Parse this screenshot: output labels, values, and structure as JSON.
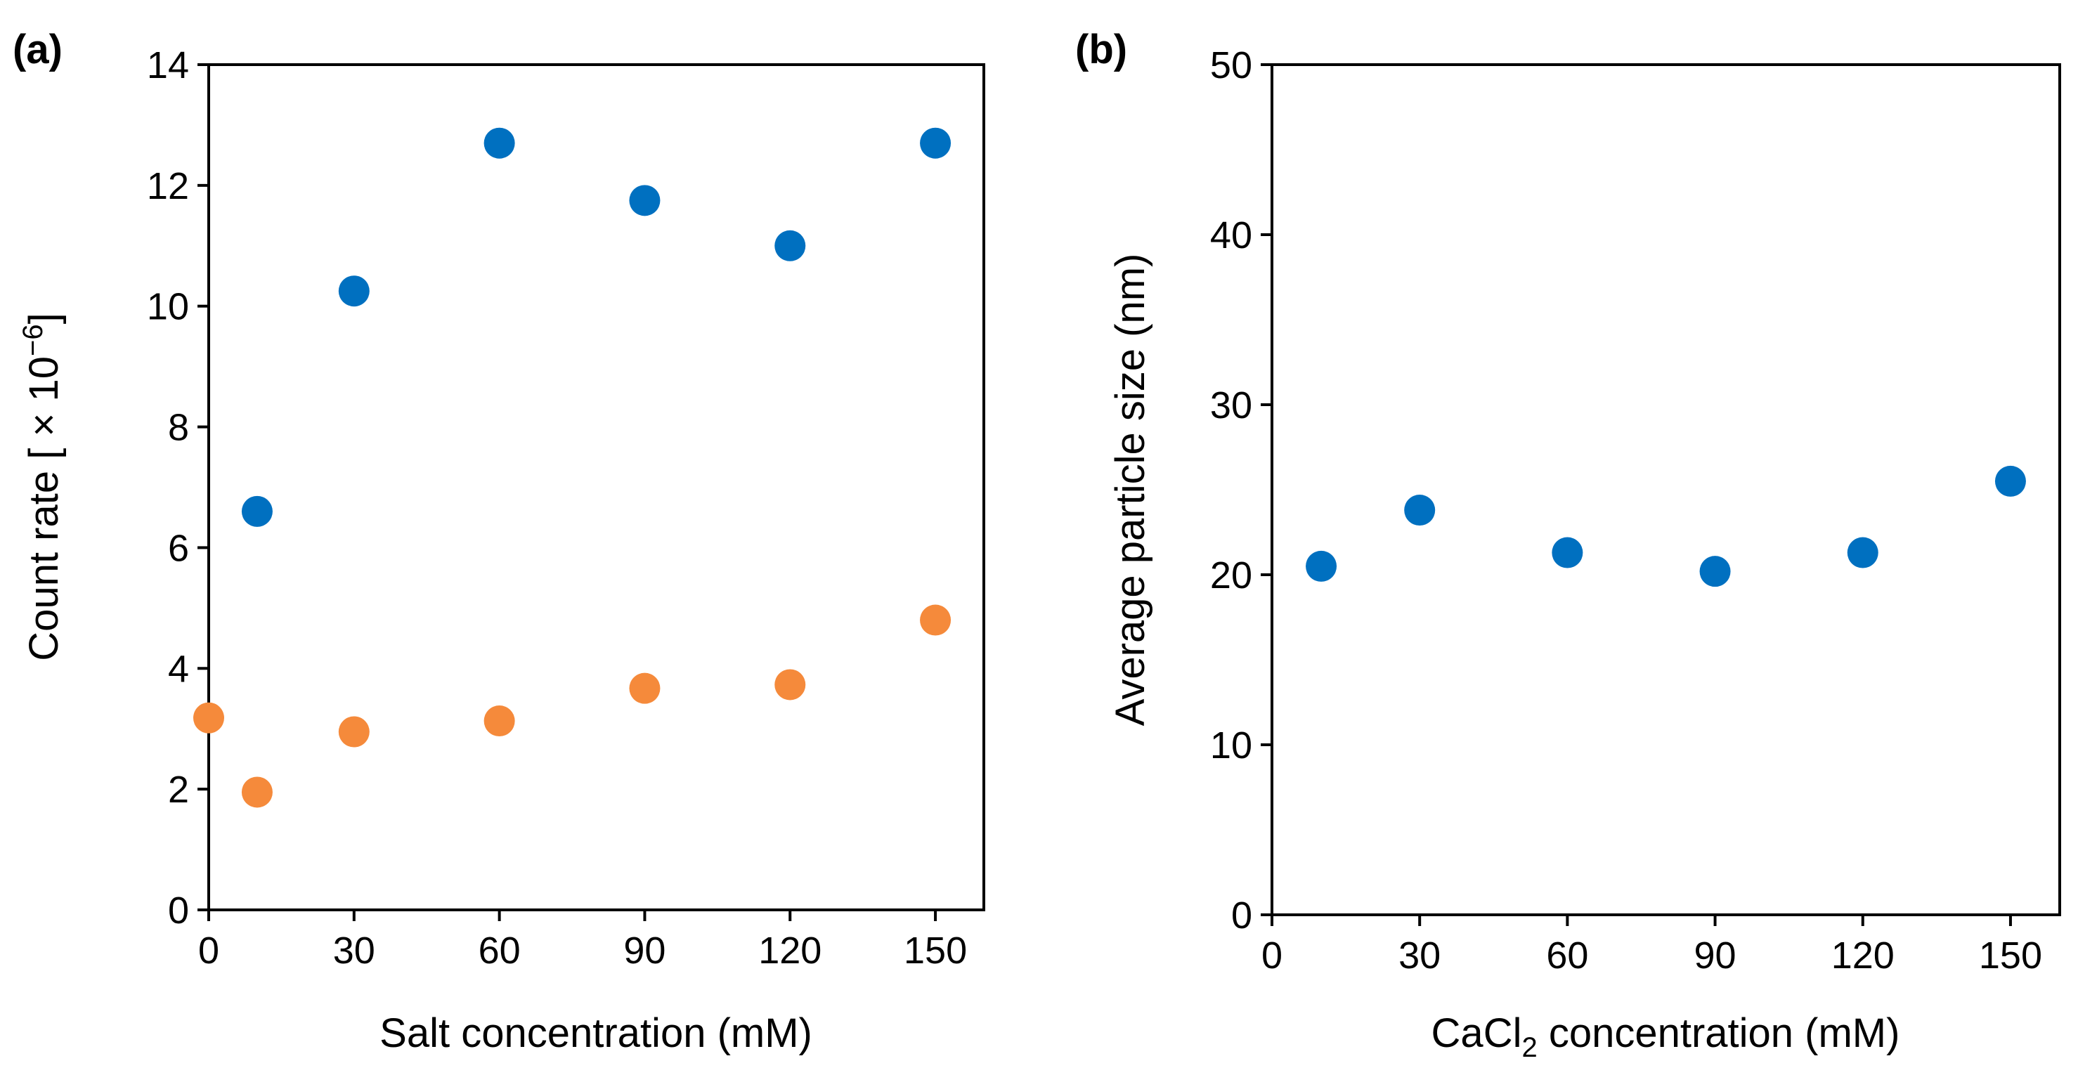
{
  "panels": [
    {
      "label": "(a)",
      "xlabel_main": "Salt concentration (mM)",
      "xlabel_sub": "",
      "xlabel_tail": "",
      "ylabel_main": "Count rate [ × 10",
      "ylabel_sup": "−6",
      "ylabel_tail": "]"
    },
    {
      "label": "(b)",
      "xlabel_main": "CaCl",
      "xlabel_sub": "2",
      "xlabel_tail": " concentration (mM)",
      "ylabel_main": "Average particle size (nm)",
      "ylabel_sup": "",
      "ylabel_tail": ""
    }
  ],
  "chart_data": [
    {
      "type": "scatter",
      "xticks": [
        0,
        30,
        60,
        90,
        120,
        150
      ],
      "yticks": [
        0,
        2,
        4,
        6,
        8,
        10,
        12,
        14
      ],
      "xlim": [
        0,
        160
      ],
      "ylim": [
        0,
        14
      ],
      "grid": false,
      "series": [
        {
          "color": "#0070c0",
          "points": [
            [
              10,
              6.6
            ],
            [
              30,
              10.25
            ],
            [
              60,
              12.7
            ],
            [
              90,
              11.75
            ],
            [
              120,
              11.0
            ],
            [
              150,
              12.7
            ]
          ]
        },
        {
          "color": "#f58a3b",
          "points": [
            [
              0,
              3.18
            ],
            [
              10,
              1.95
            ],
            [
              30,
              2.95
            ],
            [
              60,
              3.13
            ],
            [
              90,
              3.67
            ],
            [
              120,
              3.73
            ],
            [
              150,
              4.8
            ]
          ]
        }
      ]
    },
    {
      "type": "scatter",
      "xticks": [
        0,
        30,
        60,
        90,
        120,
        150
      ],
      "yticks": [
        0,
        10,
        20,
        30,
        40,
        50
      ],
      "xlim": [
        0,
        160
      ],
      "ylim": [
        0,
        50
      ],
      "grid": false,
      "series": [
        {
          "color": "#0070c0",
          "points": [
            [
              10,
              20.5
            ],
            [
              30,
              23.8
            ],
            [
              60,
              21.3
            ],
            [
              90,
              20.2
            ],
            [
              120,
              21.3
            ],
            [
              150,
              25.5
            ]
          ]
        }
      ]
    }
  ]
}
